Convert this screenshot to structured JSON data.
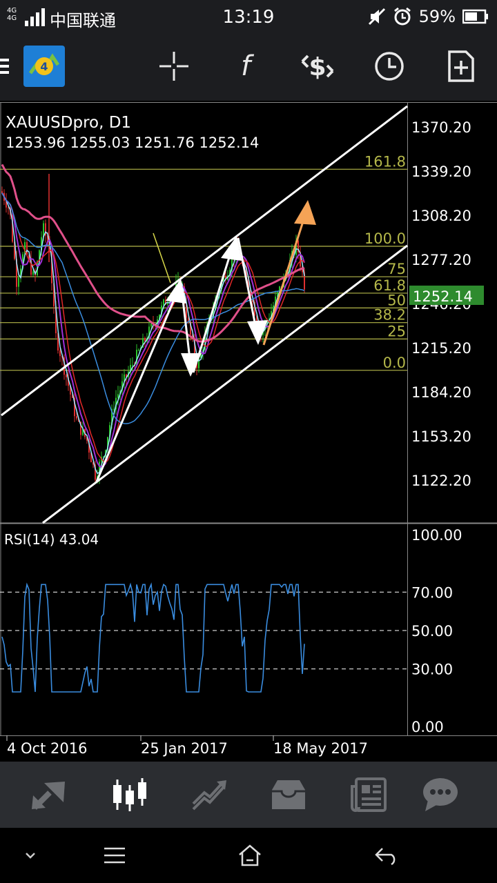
{
  "status_bar": {
    "network_top": "4G",
    "network_bottom": "4G",
    "carrier": "中国联通",
    "time": "13:19",
    "battery": "59%"
  },
  "toolbar": {
    "items": [
      "menu-icon",
      "app-logo",
      "crosshair-icon",
      "indicators-icon",
      "objects-icon",
      "timeframe-icon",
      "add-template-icon"
    ]
  },
  "chart": {
    "symbol_title": "XAUUSDpro, D1",
    "ohlc": "1253.96 1255.03 1251.76 1252.14",
    "current_price": "1252.14",
    "price_axis_labels": [
      "1370.20",
      "1339.20",
      "1308.20",
      "1277.20",
      "1246.20",
      "1215.20",
      "1184.20",
      "1153.20",
      "1122.20"
    ],
    "fibonacci_levels": [
      {
        "label": "161.8",
        "price": 1340.5
      },
      {
        "label": "100.0",
        "price": 1286.4
      },
      {
        "label": "75",
        "price": 1265.0
      },
      {
        "label": "61.8",
        "price": 1253.5
      },
      {
        "label": "50",
        "price": 1243.1
      },
      {
        "label": "38.2",
        "price": 1232.8
      },
      {
        "label": "25",
        "price": 1221.3
      },
      {
        "label": "0.0",
        "price": 1199.3
      }
    ],
    "date_labels": [
      "4 Oct 2016",
      "25 Jan 2017",
      "18 May 2017"
    ],
    "colors": {
      "fib": "#b5b84a",
      "price_badge": "#2e8b2e",
      "channel": "#ffffff",
      "arrow_orange": "#f5a356",
      "ma_pink": "#e0508a",
      "ma_blue": "#3a8de0",
      "ma_cyan": "#9be8ff",
      "ma_purple": "#a030d8",
      "ma_red": "#e02828",
      "candle_green": "#2bc42b",
      "candle_red": "#e03030",
      "rsi_line": "#3a8de0"
    }
  },
  "rsi": {
    "title": "RSI(14) 43.04",
    "axis_labels": [
      "100.00",
      "70.00",
      "50.00",
      "30.00",
      "0.00"
    ],
    "levels": [
      70,
      50,
      30
    ],
    "current": 43.04
  },
  "bottom_nav": {
    "items": [
      "quotes-icon",
      "chart-icon",
      "trade-icon",
      "history-icon",
      "news-icon",
      "chat-icon"
    ],
    "active": "chart-icon"
  },
  "system_nav": {
    "items": [
      "chevron-down-icon",
      "menu-lines-icon",
      "home-icon",
      "back-icon"
    ]
  }
}
